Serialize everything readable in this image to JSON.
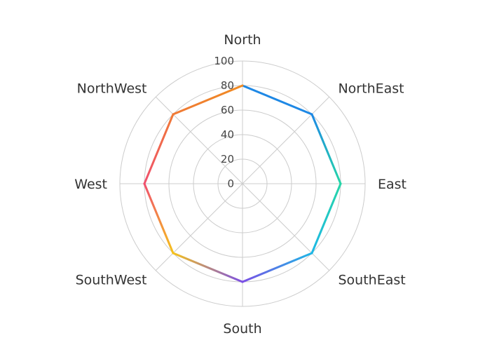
{
  "chart_data": {
    "type": "radar",
    "categories": [
      "North",
      "NorthEast",
      "East",
      "SouthEast",
      "South",
      "SouthWest",
      "West",
      "NorthWest"
    ],
    "values": [
      80,
      80,
      80,
      80,
      80,
      80,
      80,
      80
    ],
    "radial_ticks": [
      "0",
      "20",
      "40",
      "60",
      "80",
      "100"
    ],
    "rlim": [
      0,
      100
    ],
    "grid": true,
    "title": "",
    "segment_colors": [
      [
        "#1e88e5",
        "#1e88e5"
      ],
      [
        "#1e88e5",
        "#26d6a8"
      ],
      [
        "#26d6a8",
        "#1eb7e6"
      ],
      [
        "#1eb7e6",
        "#7b4fe6"
      ],
      [
        "#7b4fe6",
        "#f5c21b"
      ],
      [
        "#f5c21b",
        "#f0506e"
      ],
      [
        "#f0506e",
        "#f07a36"
      ],
      [
        "#f07a36",
        "#f08b22"
      ]
    ]
  }
}
